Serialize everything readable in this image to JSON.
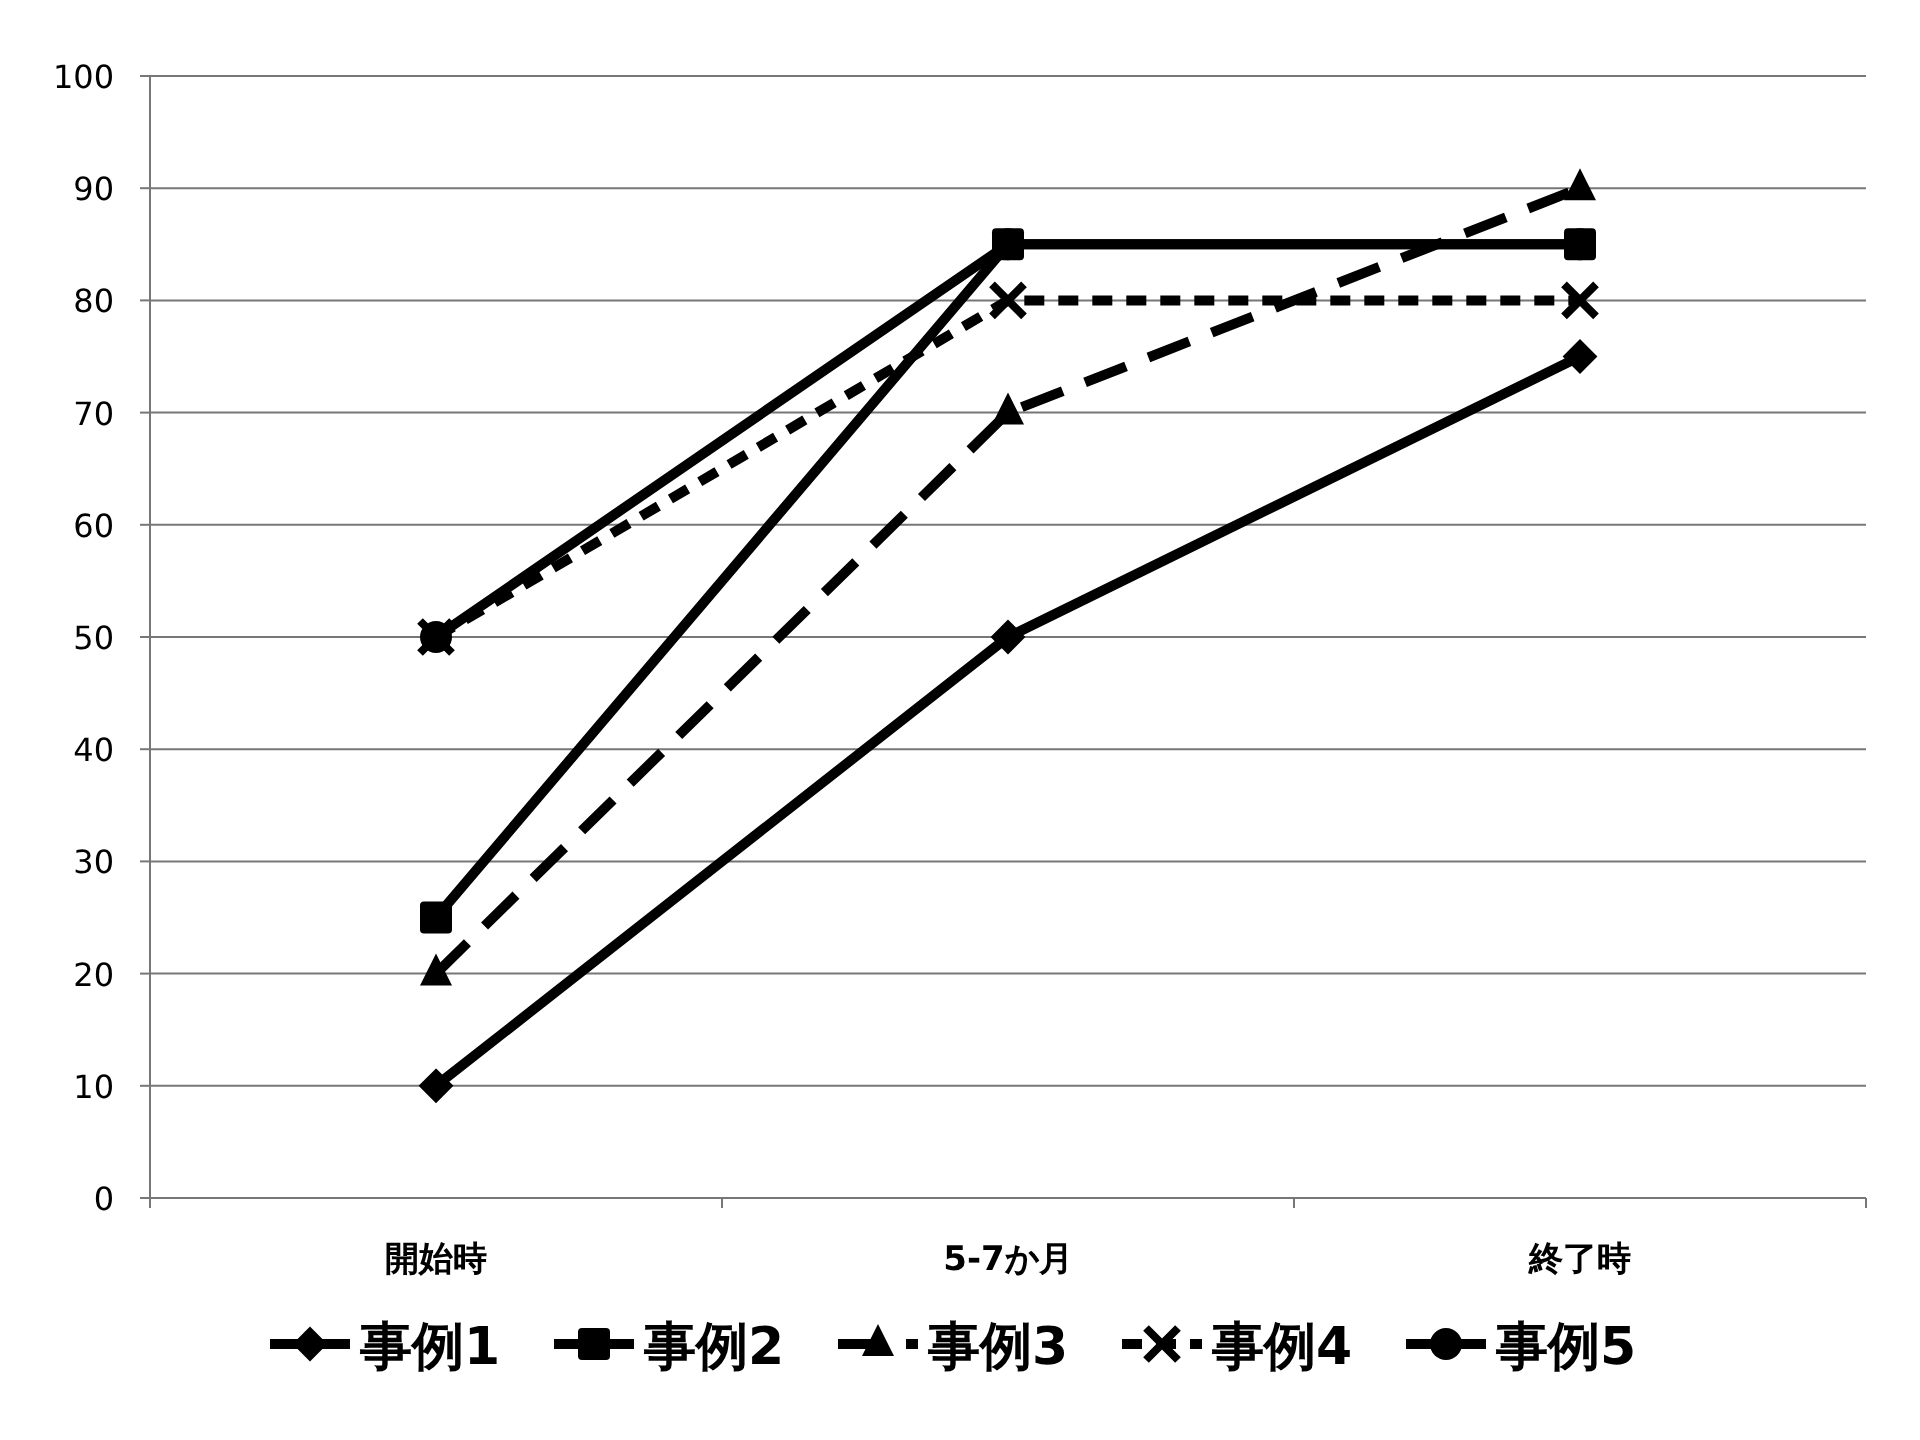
{
  "chart_data": {
    "type": "line",
    "categories": [
      "開始時",
      "5-7か月",
      "終了時"
    ],
    "series": [
      {
        "name": "事例1",
        "color": "#000000",
        "marker": "diamond",
        "line_style": "solid",
        "values": [
          10,
          50,
          75
        ]
      },
      {
        "name": "事例2",
        "color": "#000000",
        "marker": "square",
        "line_style": "solid",
        "values": [
          25,
          85,
          85
        ]
      },
      {
        "name": "事例3",
        "color": "#000000",
        "marker": "triangle",
        "line_style": "dashed",
        "values": [
          20,
          70,
          90
        ]
      },
      {
        "name": "事例4",
        "color": "#000000",
        "marker": "cross",
        "line_style": "dotted",
        "values": [
          50,
          80,
          80
        ]
      },
      {
        "name": "事例5",
        "color": "#000000",
        "marker": "circle",
        "line_style": "solid",
        "values": [
          50,
          85,
          85
        ]
      }
    ],
    "ylim": [
      0,
      100
    ],
    "yticks": [
      0,
      10,
      20,
      30,
      40,
      50,
      60,
      70,
      80,
      90,
      100
    ],
    "grid": "y",
    "legend": "bottom"
  }
}
